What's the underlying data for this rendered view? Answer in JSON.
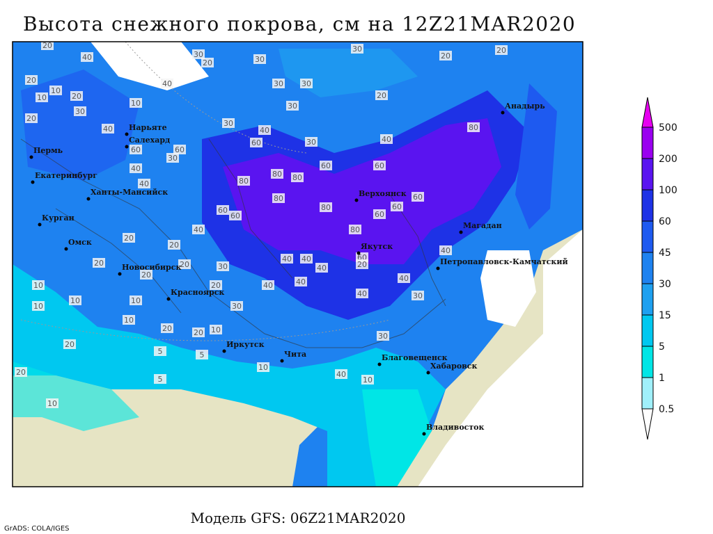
{
  "title": "Высота снежного покрова, см на 12Z21MAR2020",
  "footer": "Модель GFS: 06Z21MAR2020",
  "credit": "GrADS: COLA/IGES",
  "cities": [
    "Нарьяте",
    "Салехард",
    "Пермь",
    "Екатеринбург",
    "Ханты-Мансийск",
    "Курган",
    "Омск",
    "Новосибирск",
    "Красноярск",
    "Иркутск",
    "Чита",
    "Верхоянск",
    "Якутск",
    "Магадан",
    "Анадырь",
    "Петропавловск-Камчатский",
    "Благовещенск",
    "Хабаровск",
    "Владивосток"
  ],
  "contour_labels": [
    20,
    40,
    30,
    20,
    30,
    20,
    10,
    20,
    30,
    30,
    30,
    20,
    20,
    30,
    20,
    40,
    10,
    10,
    20,
    30,
    40,
    60,
    60,
    30,
    40,
    40,
    60,
    60,
    80,
    80,
    80,
    80,
    80,
    80,
    60,
    60,
    80,
    60,
    60,
    60,
    40,
    40,
    30,
    30,
    40,
    40,
    60,
    60,
    40,
    40,
    20,
    20,
    20,
    20,
    10,
    20,
    10,
    10,
    20,
    20,
    30,
    40,
    10,
    40,
    20,
    30,
    20,
    10,
    10,
    5,
    10,
    5,
    5,
    20,
    40,
    10,
    40,
    40,
    30,
    40,
    20,
    10,
    30
  ],
  "legend": {
    "levels": [
      0.5,
      1,
      5,
      15,
      30,
      45,
      60,
      100,
      200,
      500
    ],
    "colors": [
      "#ffffff",
      "#a0f0fa",
      "#00e6e6",
      "#00c8f0",
      "#1ea0f0",
      "#1e82f0",
      "#1e5af0",
      "#1e32e6",
      "#5a14f0",
      "#9a00f0",
      "#e600f0"
    ]
  }
}
